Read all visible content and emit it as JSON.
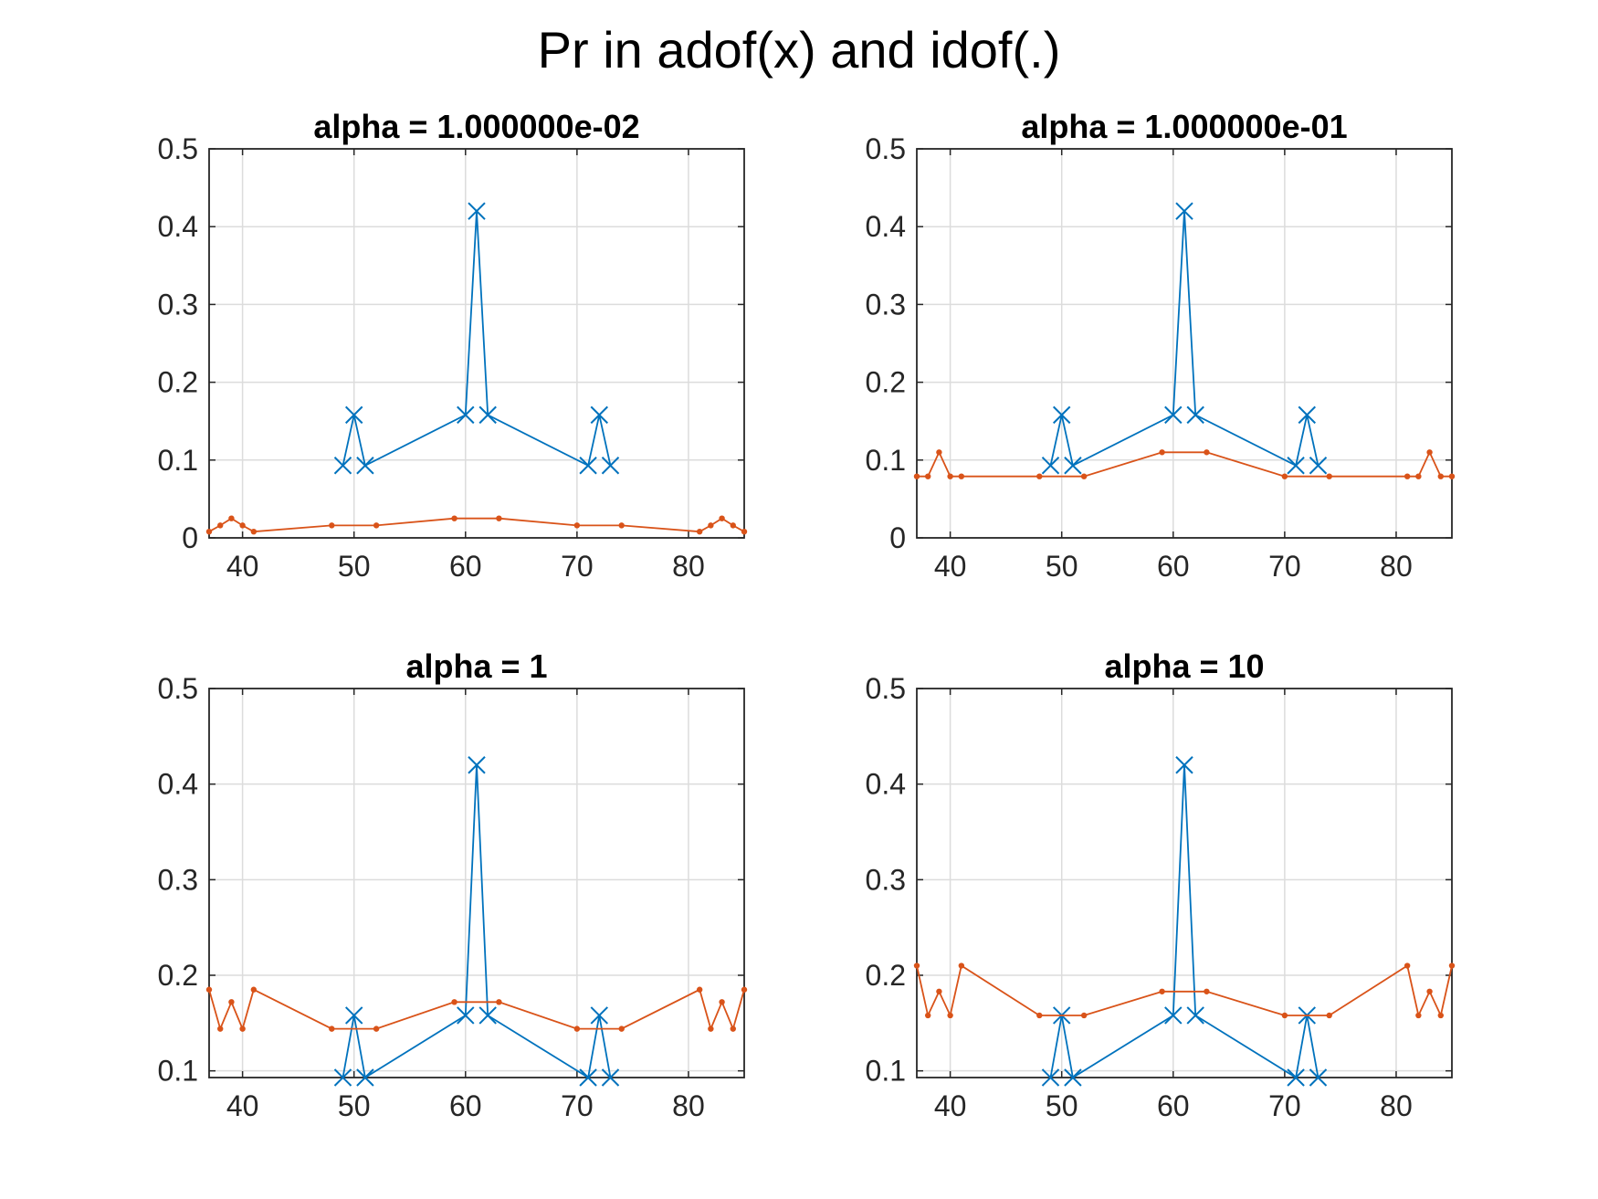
{
  "figure": {
    "title": "Pr in adof(x) and idof(.)"
  },
  "colors": {
    "series_x": "#0072bd",
    "series_dot": "#d95319",
    "grid": "#dcdcdc",
    "axis": "#262626"
  },
  "chart_data": [
    {
      "type": "line",
      "title": "alpha = 1.000000e-02",
      "xlim": [
        37,
        85
      ],
      "ylim": [
        0,
        0.5
      ],
      "xticks": [
        "40",
        "50",
        "60",
        "70",
        "80"
      ],
      "yticks": [
        "0",
        "0.1",
        "0.2",
        "0.3",
        "0.4",
        "0.5"
      ],
      "grid": true,
      "series": [
        {
          "marker": "x",
          "x": [
            49,
            50,
            51,
            60,
            61,
            62,
            71,
            72,
            73
          ],
          "y": [
            0.093,
            0.158,
            0.093,
            0.158,
            0.42,
            0.158,
            0.093,
            0.158,
            0.093
          ]
        },
        {
          "marker": "dot",
          "x": [
            37,
            38,
            39,
            40,
            41,
            48,
            52,
            59,
            63,
            70,
            74,
            81,
            82,
            83,
            84,
            85
          ],
          "y": [
            0.008,
            0.016,
            0.025,
            0.016,
            0.008,
            0.016,
            0.016,
            0.025,
            0.025,
            0.016,
            0.016,
            0.008,
            0.016,
            0.025,
            0.016,
            0.008
          ]
        }
      ]
    },
    {
      "type": "line",
      "title": "alpha = 1.000000e-01",
      "xlim": [
        37,
        85
      ],
      "ylim": [
        0,
        0.5
      ],
      "xticks": [
        "40",
        "50",
        "60",
        "70",
        "80"
      ],
      "yticks": [
        "0",
        "0.1",
        "0.2",
        "0.3",
        "0.4",
        "0.5"
      ],
      "grid": true,
      "series": [
        {
          "marker": "x",
          "x": [
            49,
            50,
            51,
            60,
            61,
            62,
            71,
            72,
            73
          ],
          "y": [
            0.093,
            0.158,
            0.093,
            0.158,
            0.42,
            0.158,
            0.093,
            0.158,
            0.093
          ]
        },
        {
          "marker": "dot",
          "x": [
            37,
            38,
            39,
            40,
            41,
            48,
            52,
            59,
            63,
            70,
            74,
            81,
            82,
            83,
            84,
            85
          ],
          "y": [
            0.079,
            0.079,
            0.11,
            0.079,
            0.079,
            0.079,
            0.079,
            0.11,
            0.11,
            0.079,
            0.079,
            0.079,
            0.079,
            0.11,
            0.079,
            0.079
          ]
        }
      ]
    },
    {
      "type": "line",
      "title": "alpha = 1",
      "xlim": [
        37,
        85
      ],
      "ylim": [
        0.093,
        0.5
      ],
      "xticks": [
        "40",
        "50",
        "60",
        "70",
        "80"
      ],
      "yticks": [
        "0.1",
        "0.2",
        "0.3",
        "0.4",
        "0.5"
      ],
      "grid": true,
      "series": [
        {
          "marker": "x",
          "x": [
            49,
            50,
            51,
            60,
            61,
            62,
            71,
            72,
            73
          ],
          "y": [
            0.093,
            0.158,
            0.093,
            0.158,
            0.42,
            0.158,
            0.093,
            0.158,
            0.093
          ]
        },
        {
          "marker": "dot",
          "x": [
            37,
            38,
            39,
            40,
            41,
            48,
            52,
            59,
            63,
            70,
            74,
            81,
            82,
            83,
            84,
            85
          ],
          "y": [
            0.185,
            0.144,
            0.172,
            0.144,
            0.185,
            0.144,
            0.144,
            0.172,
            0.172,
            0.144,
            0.144,
            0.185,
            0.144,
            0.172,
            0.144,
            0.185
          ]
        }
      ]
    },
    {
      "type": "line",
      "title": "alpha = 10",
      "xlim": [
        37,
        85
      ],
      "ylim": [
        0.093,
        0.5
      ],
      "xticks": [
        "40",
        "50",
        "60",
        "70",
        "80"
      ],
      "yticks": [
        "0.1",
        "0.2",
        "0.3",
        "0.4",
        "0.5"
      ],
      "grid": true,
      "series": [
        {
          "marker": "x",
          "x": [
            49,
            50,
            51,
            60,
            61,
            62,
            71,
            72,
            73
          ],
          "y": [
            0.093,
            0.158,
            0.093,
            0.158,
            0.42,
            0.158,
            0.093,
            0.158,
            0.093
          ]
        },
        {
          "marker": "dot",
          "x": [
            37,
            38,
            39,
            40,
            41,
            48,
            52,
            59,
            63,
            70,
            74,
            81,
            82,
            83,
            84,
            85
          ],
          "y": [
            0.21,
            0.158,
            0.183,
            0.158,
            0.21,
            0.158,
            0.158,
            0.183,
            0.183,
            0.158,
            0.158,
            0.21,
            0.158,
            0.183,
            0.158,
            0.21
          ]
        }
      ]
    }
  ]
}
